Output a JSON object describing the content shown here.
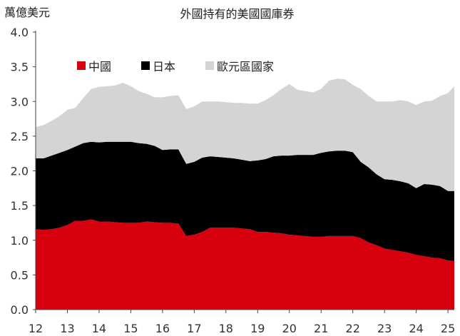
{
  "chart_data": {
    "type": "area",
    "title": "外國持有的美國國庫券",
    "unit_label": "萬億美元",
    "ylim": [
      0,
      4.0
    ],
    "y_ticks": [
      "0.0",
      "0.5",
      "1.0",
      "1.5",
      "2.0",
      "2.5",
      "3.0",
      "3.5",
      "4.0"
    ],
    "x_ticks": [
      "12",
      "13",
      "14",
      "15",
      "16",
      "17",
      "18",
      "19",
      "20",
      "21",
      "22",
      "23",
      "24",
      "25"
    ],
    "x_range": [
      2012.0,
      2025.2
    ],
    "stacking": "stacked",
    "legend_position": "top-left",
    "x": [
      2012.0,
      2012.25,
      2012.5,
      2012.75,
      2013.0,
      2013.25,
      2013.5,
      2013.75,
      2014.0,
      2014.25,
      2014.5,
      2014.75,
      2015.0,
      2015.25,
      2015.5,
      2015.75,
      2016.0,
      2016.25,
      2016.5,
      2016.75,
      2017.0,
      2017.25,
      2017.5,
      2017.75,
      2018.0,
      2018.25,
      2018.5,
      2018.75,
      2019.0,
      2019.25,
      2019.5,
      2019.75,
      2020.0,
      2020.25,
      2020.5,
      2020.75,
      2021.0,
      2021.25,
      2021.5,
      2021.75,
      2022.0,
      2022.25,
      2022.5,
      2022.75,
      2023.0,
      2023.25,
      2023.5,
      2023.75,
      2024.0,
      2024.25,
      2024.5,
      2024.75,
      2025.0,
      2025.2
    ],
    "series": [
      {
        "name": "中國",
        "color": "#d7000f",
        "values": [
          1.16,
          1.15,
          1.16,
          1.18,
          1.22,
          1.28,
          1.28,
          1.3,
          1.27,
          1.27,
          1.26,
          1.25,
          1.25,
          1.25,
          1.27,
          1.26,
          1.25,
          1.25,
          1.24,
          1.06,
          1.08,
          1.12,
          1.18,
          1.18,
          1.18,
          1.18,
          1.17,
          1.16,
          1.12,
          1.12,
          1.11,
          1.1,
          1.08,
          1.07,
          1.06,
          1.05,
          1.05,
          1.06,
          1.06,
          1.06,
          1.06,
          1.03,
          0.97,
          0.93,
          0.88,
          0.86,
          0.84,
          0.82,
          0.79,
          0.77,
          0.75,
          0.74,
          0.71,
          0.7
        ]
      },
      {
        "name": "日本",
        "color": "#000000",
        "values": [
          1.02,
          1.03,
          1.06,
          1.08,
          1.08,
          1.07,
          1.12,
          1.12,
          1.14,
          1.15,
          1.16,
          1.17,
          1.17,
          1.15,
          1.12,
          1.1,
          1.05,
          1.06,
          1.07,
          1.04,
          1.05,
          1.07,
          1.03,
          1.02,
          1.01,
          1.0,
          0.99,
          0.98,
          1.03,
          1.05,
          1.1,
          1.12,
          1.14,
          1.16,
          1.17,
          1.18,
          1.21,
          1.22,
          1.23,
          1.23,
          1.21,
          1.1,
          1.08,
          1.02,
          1.0,
          1.01,
          1.01,
          1.0,
          0.96,
          1.04,
          1.05,
          1.04,
          1.0,
          1.01
        ]
      },
      {
        "name": "歐元區國家",
        "color": "#d4d4d4",
        "values": [
          0.45,
          0.48,
          0.5,
          0.53,
          0.58,
          0.56,
          0.65,
          0.76,
          0.8,
          0.8,
          0.81,
          0.85,
          0.8,
          0.75,
          0.72,
          0.7,
          0.76,
          0.77,
          0.78,
          0.79,
          0.8,
          0.81,
          0.79,
          0.8,
          0.8,
          0.8,
          0.82,
          0.83,
          0.82,
          0.85,
          0.88,
          0.96,
          1.03,
          0.94,
          0.92,
          0.9,
          0.92,
          1.02,
          1.04,
          1.03,
          0.97,
          1.05,
          1.03,
          1.05,
          1.12,
          1.13,
          1.17,
          1.18,
          1.2,
          1.19,
          1.21,
          1.3,
          1.41,
          1.51
        ]
      }
    ]
  }
}
